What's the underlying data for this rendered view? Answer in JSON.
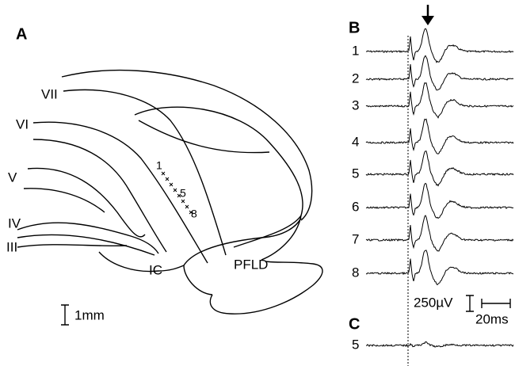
{
  "panel_a": {
    "label": "A",
    "regions": [
      "VII",
      "VI",
      "V",
      "IV",
      "III",
      "IC",
      "PFLD"
    ],
    "track_labels": [
      "1",
      "5",
      "8"
    ],
    "scale": "1mm"
  },
  "panel_b": {
    "label": "B",
    "traces": [
      "1",
      "2",
      "3",
      "4",
      "5",
      "6",
      "7",
      "8"
    ],
    "scale_voltage": "250µV",
    "scale_time": "20ms"
  },
  "panel_c": {
    "label": "C",
    "traces": [
      "5"
    ]
  }
}
